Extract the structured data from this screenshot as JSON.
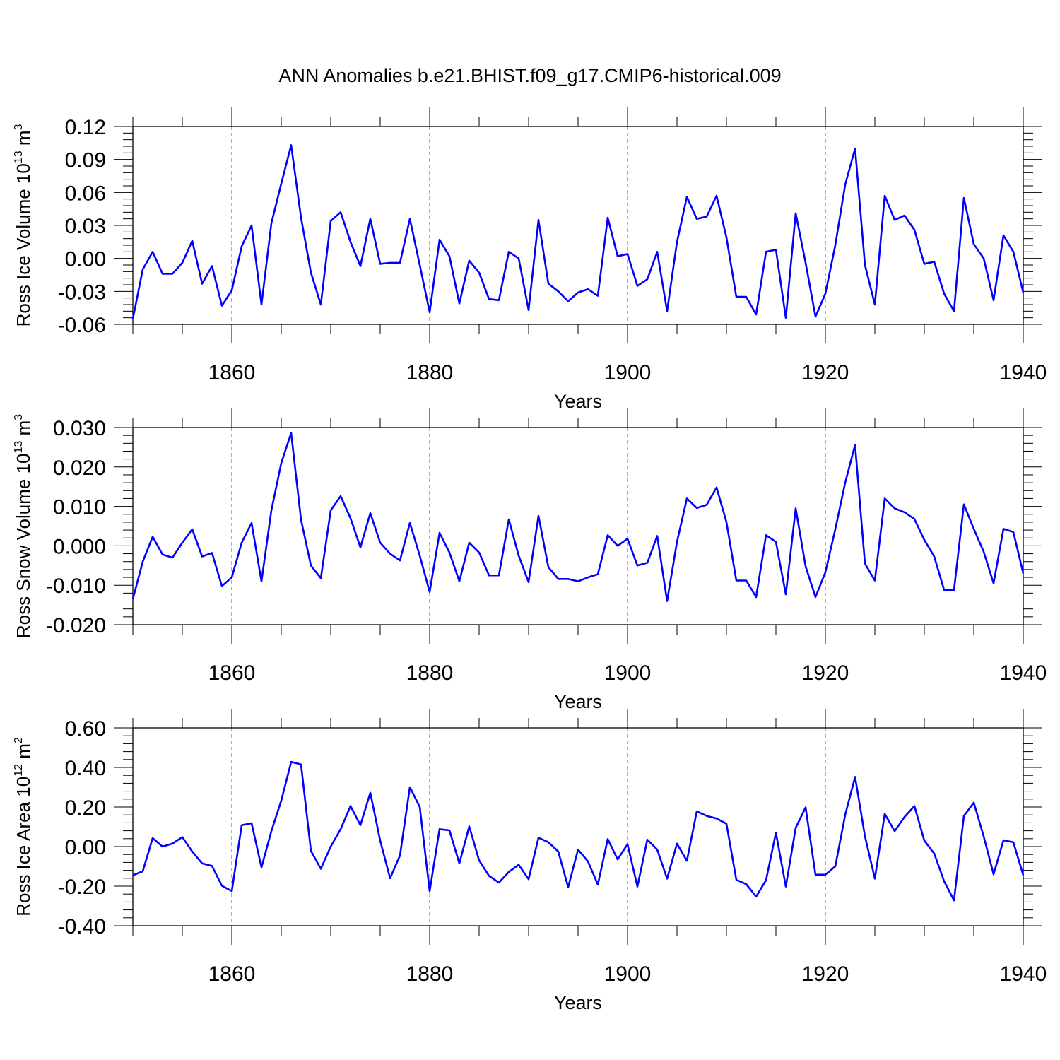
{
  "figure": {
    "title": "ANN Anomalies b.e21.BHIST.f09_g17.CMIP6-historical.009",
    "line_color": "#0000ff"
  },
  "chart_data": [
    {
      "type": "line",
      "xlabel": "Years",
      "ylabel": "Ross Ice Volume 10",
      "ylabel_exp": "13",
      "ylabel_unit": " m",
      "ylabel_unit_exp": "3",
      "xlim": [
        1850,
        1940
      ],
      "ylim": [
        -0.06,
        0.12
      ],
      "xticks": [
        1860,
        1880,
        1900,
        1920,
        1940
      ],
      "yticks": [
        -0.06,
        -0.03,
        0.0,
        0.03,
        0.06,
        0.09,
        0.12
      ],
      "yticklabels": [
        "-0.06",
        "-0.03",
        "0.00",
        "0.03",
        "0.06",
        "0.09",
        "0.12"
      ],
      "x_start": 1850,
      "values": [
        -0.055,
        -0.01,
        0.006,
        -0.014,
        -0.014,
        -0.004,
        0.016,
        -0.023,
        -0.007,
        -0.043,
        -0.029,
        0.011,
        0.03,
        -0.042,
        0.032,
        0.068,
        0.103,
        0.037,
        -0.013,
        -0.042,
        0.034,
        0.042,
        0.015,
        -0.007,
        0.036,
        -0.005,
        -0.004,
        -0.004,
        0.036,
        -0.006,
        -0.049,
        0.017,
        0.002,
        -0.041,
        -0.002,
        -0.013,
        -0.037,
        -0.038,
        0.006,
        0.0,
        -0.047,
        0.035,
        -0.023,
        -0.03,
        -0.039,
        -0.031,
        -0.028,
        -0.034,
        0.037,
        0.002,
        0.004,
        -0.025,
        -0.019,
        0.006,
        -0.048,
        0.015,
        0.056,
        0.036,
        0.038,
        0.057,
        0.019,
        -0.035,
        -0.035,
        -0.051,
        0.006,
        0.008,
        -0.054,
        0.041,
        -0.004,
        -0.053,
        -0.032,
        0.012,
        0.067,
        0.1,
        -0.006,
        -0.042,
        0.057,
        0.035,
        0.039,
        0.026,
        -0.005,
        -0.003,
        -0.032,
        -0.048,
        0.055,
        0.013,
        0.0,
        -0.038,
        0.021,
        0.006,
        -0.031
      ]
    },
    {
      "type": "line",
      "xlabel": "Years",
      "ylabel": "Ross Snow Volume 10",
      "ylabel_exp": "13",
      "ylabel_unit": " m",
      "ylabel_unit_exp": "3",
      "xlim": [
        1850,
        1940
      ],
      "ylim": [
        -0.02,
        0.03
      ],
      "xticks": [
        1860,
        1880,
        1900,
        1920,
        1940
      ],
      "yticks": [
        -0.02,
        -0.01,
        0.0,
        0.01,
        0.02,
        0.03
      ],
      "yticklabels": [
        "-0.020",
        "-0.010",
        "0.000",
        "0.010",
        "0.020",
        "0.030"
      ],
      "x_start": 1850,
      "values": [
        -0.0135,
        -0.004,
        0.0023,
        -0.0022,
        -0.003,
        0.0008,
        0.0042,
        -0.0027,
        -0.0018,
        -0.0102,
        -0.008,
        0.0008,
        0.0058,
        -0.009,
        0.009,
        0.021,
        0.0286,
        0.0066,
        -0.005,
        -0.0082,
        0.009,
        0.0126,
        0.007,
        -0.0004,
        0.0083,
        0.0008,
        -0.002,
        -0.0037,
        0.0058,
        -0.0025,
        -0.0117,
        0.0033,
        -0.0017,
        -0.009,
        0.0008,
        -0.0017,
        -0.0075,
        -0.0075,
        0.0067,
        -0.0025,
        -0.0092,
        0.0076,
        -0.0054,
        -0.0084,
        -0.0084,
        -0.009,
        -0.008,
        -0.0072,
        0.0027,
        0.0,
        0.0018,
        -0.005,
        -0.0043,
        0.0025,
        -0.014,
        0.001,
        0.012,
        0.0096,
        0.0104,
        0.0148,
        0.006,
        -0.0088,
        -0.0088,
        -0.013,
        0.0027,
        0.001,
        -0.0123,
        0.0095,
        -0.0052,
        -0.013,
        -0.0067,
        0.0042,
        0.016,
        0.0256,
        -0.0045,
        -0.0088,
        0.012,
        0.0095,
        0.0085,
        0.0068,
        0.0015,
        -0.0027,
        -0.0112,
        -0.0112,
        0.0105,
        0.0043,
        -0.0015,
        -0.0095,
        0.0043,
        0.0035,
        -0.007
      ]
    },
    {
      "type": "line",
      "xlabel": "Years",
      "ylabel": "Ross Ice Area 10",
      "ylabel_exp": "12",
      "ylabel_unit": " m",
      "ylabel_unit_exp": "2",
      "xlim": [
        1850,
        1940
      ],
      "ylim": [
        -0.4,
        0.6
      ],
      "xticks": [
        1860,
        1880,
        1900,
        1920,
        1940
      ],
      "yticks": [
        -0.4,
        -0.2,
        0.0,
        0.2,
        0.4,
        0.6
      ],
      "yticklabels": [
        "-0.40",
        "-0.20",
        "0.00",
        "0.20",
        "0.40",
        "0.60"
      ],
      "x_start": 1850,
      "values": [
        -0.145,
        -0.125,
        0.043,
        0.0,
        0.015,
        0.048,
        -0.025,
        -0.085,
        -0.098,
        -0.198,
        -0.225,
        0.108,
        0.118,
        -0.105,
        0.078,
        0.232,
        0.428,
        0.415,
        -0.022,
        -0.112,
        0.0,
        0.088,
        0.205,
        0.108,
        0.272,
        0.03,
        -0.16,
        -0.045,
        0.3,
        0.2,
        -0.225,
        0.088,
        0.082,
        -0.085,
        0.102,
        -0.07,
        -0.148,
        -0.182,
        -0.128,
        -0.092,
        -0.165,
        0.045,
        0.022,
        -0.025,
        -0.205,
        -0.015,
        -0.075,
        -0.192,
        0.038,
        -0.065,
        0.012,
        -0.202,
        0.035,
        -0.015,
        -0.162,
        0.015,
        -0.072,
        0.178,
        0.155,
        0.142,
        0.115,
        -0.168,
        -0.19,
        -0.253,
        -0.17,
        0.07,
        -0.202,
        0.095,
        0.198,
        -0.142,
        -0.142,
        -0.1,
        0.16,
        0.352,
        0.052,
        -0.162,
        0.165,
        0.078,
        0.15,
        0.205,
        0.03,
        -0.035,
        -0.175,
        -0.272,
        0.155,
        0.222,
        0.052,
        -0.14,
        0.032,
        0.022,
        -0.145
      ]
    }
  ]
}
